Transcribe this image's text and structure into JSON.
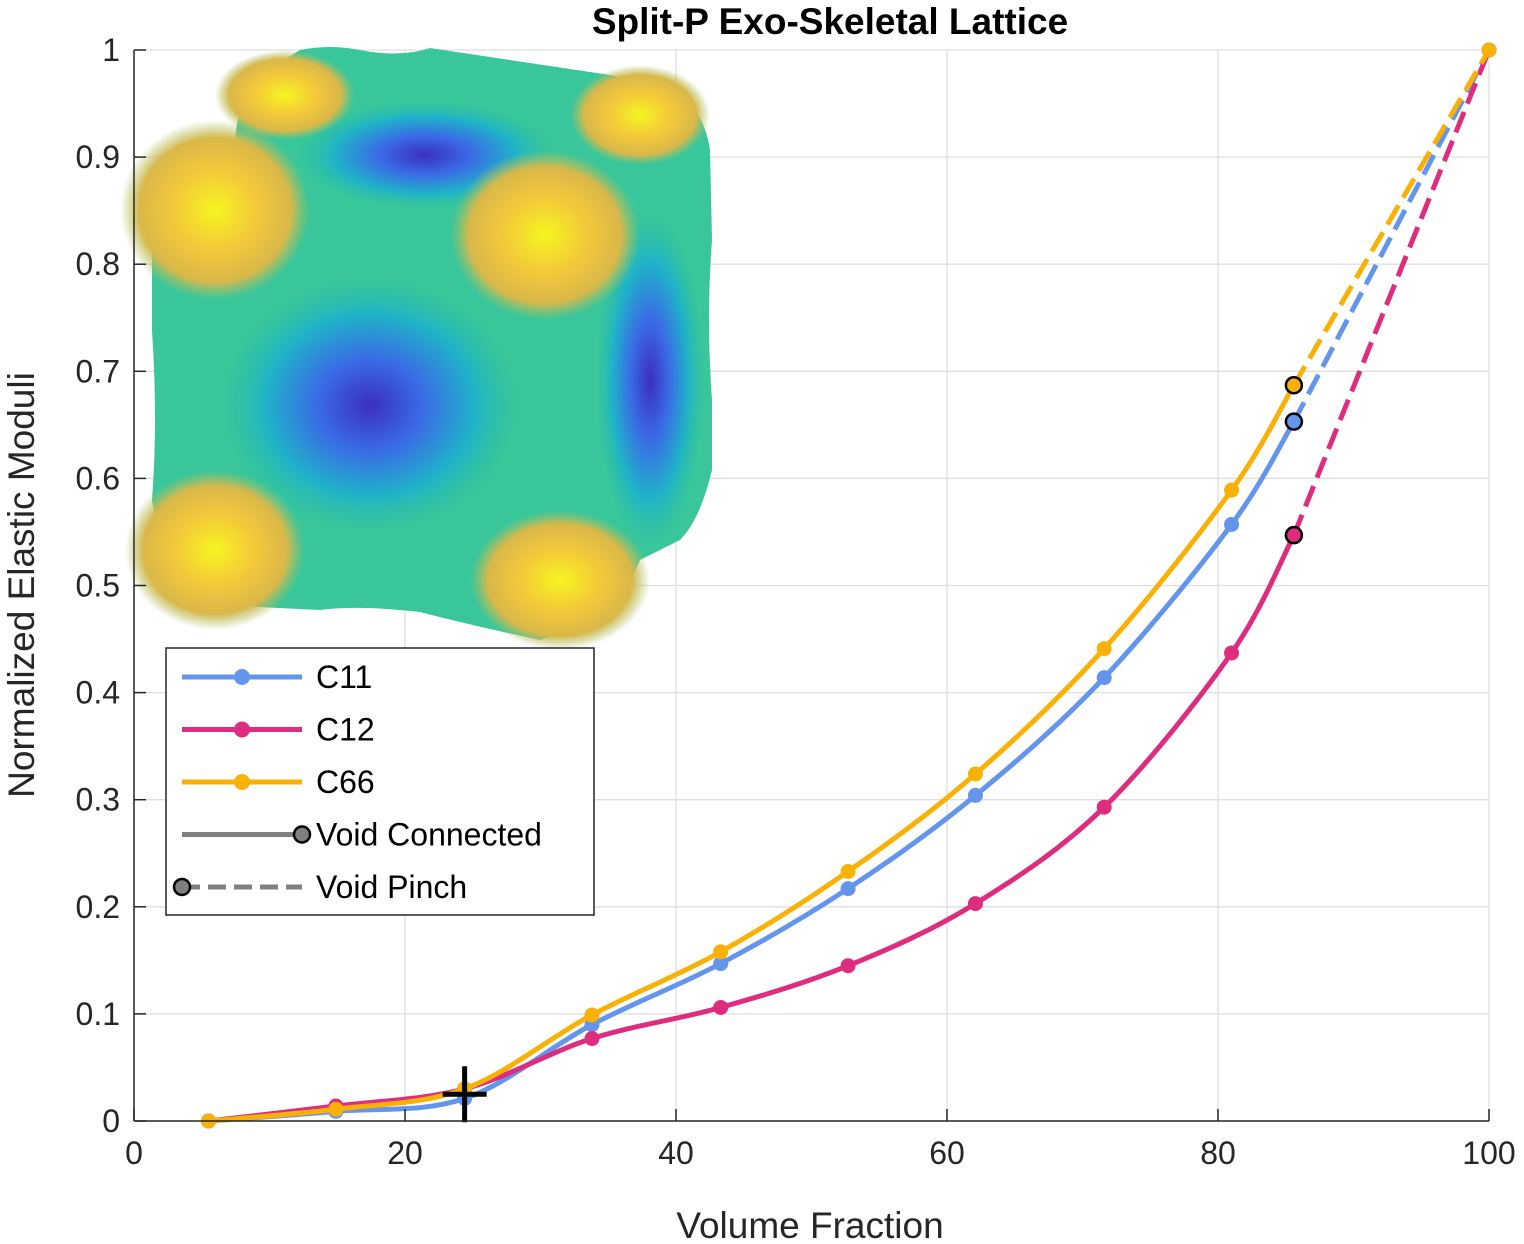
{
  "chart_data": {
    "type": "line",
    "title": "Split-P Exo-Skeletal Lattice",
    "xlabel": "Volume Fraction",
    "ylabel": "Normalized Elastic Moduli",
    "xlim": [
      0,
      100
    ],
    "ylim": [
      0,
      1
    ],
    "xticks": [
      0,
      20,
      40,
      60,
      80,
      100
    ],
    "yticks": [
      0,
      0.1,
      0.2,
      0.3,
      0.4,
      0.5,
      0.6,
      0.7,
      0.8,
      0.9,
      1
    ],
    "xtick_labels": [
      "0",
      "20",
      "40",
      "60",
      "80",
      "100"
    ],
    "ytick_labels": [
      "0",
      "0.1",
      "0.2",
      "0.3",
      "0.4",
      "0.5",
      "0.6",
      "0.7",
      "0.8",
      "0.9",
      "1"
    ],
    "grid": true,
    "legend_position": "left-middle",
    "x": [
      5.5,
      14.9,
      24.4,
      33.8,
      43.3,
      52.7,
      62.1,
      71.6,
      81.0,
      85.6,
      100
    ],
    "series": [
      {
        "name": "C11",
        "color": "#6495ED",
        "values": [
          0.0,
          0.009,
          0.021,
          0.09,
          0.147,
          0.217,
          0.304,
          0.414,
          0.557,
          0.653,
          1.0
        ]
      },
      {
        "name": "C12",
        "color": "#DE2D7F",
        "values": [
          0.0,
          0.014,
          0.03,
          0.077,
          0.106,
          0.145,
          0.203,
          0.293,
          0.437,
          0.547,
          1.0
        ]
      },
      {
        "name": "C66",
        "color": "#FAB106",
        "values": [
          0.0,
          0.011,
          0.03,
          0.099,
          0.158,
          0.233,
          0.324,
          0.441,
          0.589,
          0.687,
          1.0
        ]
      }
    ],
    "pinch_start_x": 85.6,
    "crosshair_marker": {
      "x": 24.4,
      "y": 0.025
    },
    "legend_entries": [
      {
        "label": "C11",
        "color": "#6495ED",
        "style": "solid-dot"
      },
      {
        "label": "C12",
        "color": "#DE2D7F",
        "style": "solid-dot"
      },
      {
        "label": "C66",
        "color": "#FAB106",
        "style": "solid-dot"
      },
      {
        "label": "Void Connected",
        "color": "#808080",
        "style": "solid-end-circle"
      },
      {
        "label": "Void Pinch",
        "color": "#808080",
        "style": "dashed-start-circle"
      }
    ],
    "inset": "split-p-lattice-surface"
  }
}
